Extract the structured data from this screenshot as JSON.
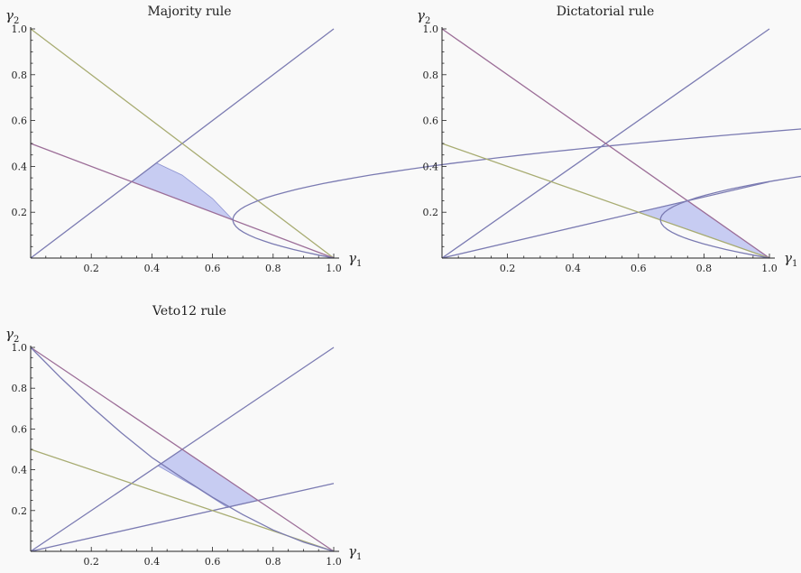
{
  "chart_data": [
    {
      "type": "line",
      "title": "Majority rule",
      "xlabel_symbol": "γ",
      "xlabel_sub": "1",
      "ylabel_symbol": "γ",
      "ylabel_sub": "2",
      "xlim": [
        0,
        1
      ],
      "ylim": [
        0,
        1
      ],
      "xticks": [
        "0.2",
        "0.4",
        "0.6",
        "0.8",
        "1.0"
      ],
      "yticks": [
        "0.2",
        "0.4",
        "0.6",
        "0.8",
        "1.0"
      ],
      "series": [
        {
          "kind": "line",
          "color": "#7b7bb2",
          "points": [
            [
              0,
              0
            ],
            [
              1,
              1
            ]
          ]
        },
        {
          "kind": "line",
          "color": "#a8ac72",
          "points": [
            [
              0,
              1
            ],
            [
              1,
              0
            ]
          ]
        },
        {
          "kind": "line",
          "color": "#9c6e98",
          "points": [
            [
              0,
              0.5
            ],
            [
              1,
              0
            ]
          ]
        },
        {
          "kind": "parabola",
          "color": "#7b7bb2",
          "vertex": [
            0.667,
            0.167
          ],
          "through": [
            1,
            0
          ],
          "ymin": 0,
          "ymax": 1
        }
      ],
      "shaded_region": [
        [
          0.333,
          0.333
        ],
        [
          0.415,
          0.415
        ],
        [
          0.5,
          0.362
        ],
        [
          0.6,
          0.26
        ],
        [
          0.667,
          0.167
        ]
      ]
    },
    {
      "type": "line",
      "title": "Dictatorial rule",
      "xlabel_symbol": "γ",
      "xlabel_sub": "1",
      "ylabel_symbol": "γ",
      "ylabel_sub": "2",
      "xlim": [
        0,
        1
      ],
      "ylim": [
        0,
        1
      ],
      "xticks": [
        "0.2",
        "0.4",
        "0.6",
        "0.8",
        "1.0"
      ],
      "yticks": [
        "0.2",
        "0.4",
        "0.6",
        "0.8",
        "1.0"
      ],
      "series": [
        {
          "kind": "line",
          "color": "#7b7bb2",
          "points": [
            [
              0,
              0
            ],
            [
              1,
              1
            ]
          ]
        },
        {
          "kind": "line",
          "color": "#7b7bb2",
          "points": [
            [
              0,
              0
            ],
            [
              1,
              0.333
            ]
          ]
        },
        {
          "kind": "line",
          "color": "#9c6e98",
          "points": [
            [
              0,
              1
            ],
            [
              1,
              0
            ]
          ]
        },
        {
          "kind": "line",
          "color": "#a8ac72",
          "points": [
            [
              0,
              0.5
            ],
            [
              1,
              0
            ]
          ]
        },
        {
          "kind": "parabola",
          "color": "#7b7bb2",
          "vertex": [
            0.667,
            0.167
          ],
          "through": [
            1,
            0
          ],
          "ymin": 0,
          "ymax": 1
        }
      ],
      "shaded_region": [
        [
          0.6,
          0.2
        ],
        [
          0.667,
          0.167
        ],
        [
          1,
          0
        ],
        [
          0.75,
          0.25
        ]
      ]
    },
    {
      "type": "line",
      "title": "Veto12 rule",
      "xlabel_symbol": "γ",
      "xlabel_sub": "1",
      "ylabel_symbol": "γ",
      "ylabel_sub": "2",
      "xlim": [
        0,
        1
      ],
      "ylim": [
        0,
        1
      ],
      "xticks": [
        "0.2",
        "0.4",
        "0.6",
        "0.8",
        "1.0"
      ],
      "yticks": [
        "0.2",
        "0.4",
        "0.6",
        "0.8",
        "1.0"
      ],
      "series": [
        {
          "kind": "line",
          "color": "#7b7bb2",
          "points": [
            [
              0,
              0
            ],
            [
              1,
              1
            ]
          ]
        },
        {
          "kind": "line",
          "color": "#7b7bb2",
          "points": [
            [
              0,
              0
            ],
            [
              1,
              0.333
            ]
          ]
        },
        {
          "kind": "line",
          "color": "#9c6e98",
          "points": [
            [
              0,
              1
            ],
            [
              1,
              0
            ]
          ]
        },
        {
          "kind": "line",
          "color": "#a8ac72",
          "points": [
            [
              0,
              0.5
            ],
            [
              1,
              0
            ]
          ]
        },
        {
          "kind": "curve",
          "color": "#7b7bb2",
          "points": [
            [
              0,
              1
            ],
            [
              0.1,
              0.85
            ],
            [
              0.2,
              0.71
            ],
            [
              0.3,
              0.58
            ],
            [
              0.4,
              0.46
            ],
            [
              0.5,
              0.36
            ],
            [
              0.6,
              0.265
            ],
            [
              0.7,
              0.18
            ],
            [
              0.8,
              0.105
            ],
            [
              0.9,
              0.045
            ],
            [
              1,
              0
            ]
          ]
        }
      ],
      "shaded_region": [
        [
          0.42,
          0.42
        ],
        [
          0.5,
          0.5
        ],
        [
          0.75,
          0.25
        ],
        [
          0.65,
          0.215
        ],
        [
          0.55,
          0.31
        ]
      ]
    }
  ],
  "colors": {
    "fill": "#c7ccf2",
    "fill_stroke": "#8d93d0",
    "axis": "#222222"
  }
}
